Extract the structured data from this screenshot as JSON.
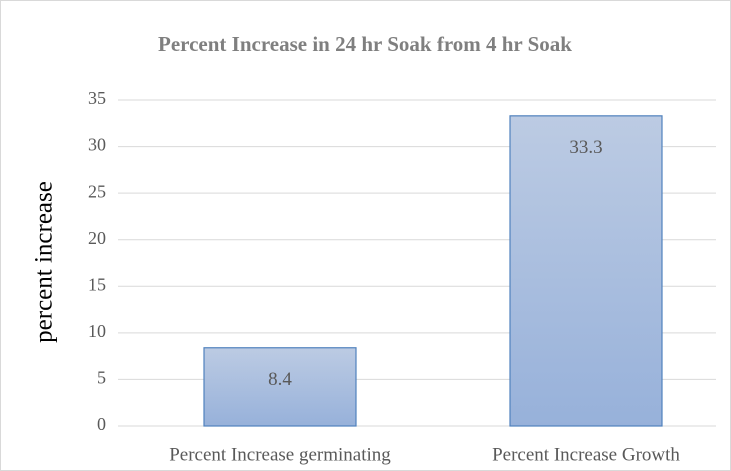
{
  "chart_data": {
    "type": "bar",
    "title": "Percent Increase in 24 hr Soak from 4 hr Soak",
    "y_label": "percent increase",
    "categories": [
      "Percent Increase germinating",
      "Percent Increase Growth"
    ],
    "values": [
      8.4,
      33.3
    ],
    "color": "#4f81bd",
    "ylim": [
      0,
      35
    ],
    "yticks": [
      0,
      5,
      10,
      15,
      20,
      25,
      30,
      35
    ],
    "grid": true
  }
}
